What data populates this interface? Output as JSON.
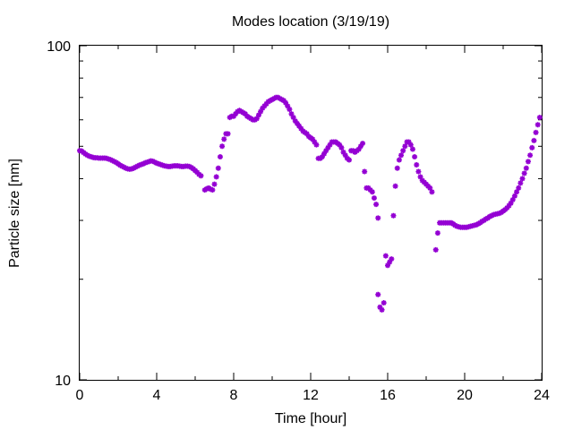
{
  "chart_data": {
    "type": "scatter",
    "title": "Modes location (3/19/19)",
    "xlabel": "Time [hour]",
    "ylabel": "Particle size [nm]",
    "xlim": [
      0,
      24
    ],
    "ylim": [
      10,
      100
    ],
    "yscale": "log",
    "grid": false,
    "legend": "none",
    "x_ticks": [
      0,
      4,
      8,
      12,
      16,
      20,
      24
    ],
    "x_tick_labels": [
      "0",
      "4",
      "8",
      "12",
      "16",
      "20",
      "24"
    ],
    "y_ticks": [
      10,
      100
    ],
    "y_tick_labels": [
      "10",
      "100"
    ],
    "marker_color": "#9400d3",
    "series": [
      {
        "points": [
          [
            0.0,
            48.5
          ],
          [
            0.1,
            48.4
          ],
          [
            0.2,
            47.9
          ],
          [
            0.3,
            47.4
          ],
          [
            0.4,
            47.0
          ],
          [
            0.5,
            46.7
          ],
          [
            0.6,
            46.5
          ],
          [
            0.7,
            46.3
          ],
          [
            0.8,
            46.2
          ],
          [
            0.9,
            46.2
          ],
          [
            1.0,
            46.1
          ],
          [
            1.1,
            46.1
          ],
          [
            1.2,
            46.1
          ],
          [
            1.3,
            46.1
          ],
          [
            1.4,
            46.0
          ],
          [
            1.5,
            45.8
          ],
          [
            1.6,
            45.6
          ],
          [
            1.7,
            45.3
          ],
          [
            1.8,
            45.0
          ],
          [
            1.9,
            44.7
          ],
          [
            2.0,
            44.3
          ],
          [
            2.1,
            43.9
          ],
          [
            2.2,
            43.6
          ],
          [
            2.3,
            43.3
          ],
          [
            2.4,
            43.0
          ],
          [
            2.5,
            42.8
          ],
          [
            2.6,
            42.7
          ],
          [
            2.7,
            42.8
          ],
          [
            2.8,
            43.0
          ],
          [
            2.9,
            43.3
          ],
          [
            3.0,
            43.6
          ],
          [
            3.1,
            43.9
          ],
          [
            3.2,
            44.1
          ],
          [
            3.3,
            44.3
          ],
          [
            3.4,
            44.6
          ],
          [
            3.5,
            44.8
          ],
          [
            3.6,
            45.0
          ],
          [
            3.7,
            45.2
          ],
          [
            3.8,
            45.1
          ],
          [
            3.9,
            44.8
          ],
          [
            4.0,
            44.5
          ],
          [
            4.1,
            44.3
          ],
          [
            4.2,
            44.1
          ],
          [
            4.3,
            43.9
          ],
          [
            4.4,
            43.7
          ],
          [
            4.5,
            43.6
          ],
          [
            4.6,
            43.5
          ],
          [
            4.7,
            43.5
          ],
          [
            4.8,
            43.6
          ],
          [
            4.9,
            43.7
          ],
          [
            5.0,
            43.7
          ],
          [
            5.1,
            43.7
          ],
          [
            5.2,
            43.6
          ],
          [
            5.3,
            43.5
          ],
          [
            5.4,
            43.5
          ],
          [
            5.5,
            43.6
          ],
          [
            5.6,
            43.6
          ],
          [
            5.7,
            43.5
          ],
          [
            5.8,
            43.2
          ],
          [
            5.9,
            42.8
          ],
          [
            6.0,
            42.3
          ],
          [
            6.1,
            41.8
          ],
          [
            6.2,
            41.2
          ],
          [
            6.3,
            40.8
          ],
          [
            6.5,
            37.0
          ],
          [
            6.6,
            37.3
          ],
          [
            6.7,
            37.5
          ],
          [
            6.8,
            37.2
          ],
          [
            6.9,
            37.0
          ],
          [
            7.0,
            38.5
          ],
          [
            7.1,
            40.5
          ],
          [
            7.2,
            43.0
          ],
          [
            7.3,
            46.5
          ],
          [
            7.4,
            50.0
          ],
          [
            7.5,
            52.5
          ],
          [
            7.6,
            54.5
          ],
          [
            7.7,
            54.5
          ],
          [
            7.8,
            61.0
          ],
          [
            7.9,
            61.5
          ],
          [
            8.0,
            61.5
          ],
          [
            8.1,
            62.5
          ],
          [
            8.2,
            63.5
          ],
          [
            8.3,
            64.0
          ],
          [
            8.4,
            63.5
          ],
          [
            8.5,
            63.0
          ],
          [
            8.6,
            62.5
          ],
          [
            8.7,
            61.5
          ],
          [
            8.8,
            61.0
          ],
          [
            8.9,
            60.5
          ],
          [
            9.0,
            60.0
          ],
          [
            9.1,
            60.0
          ],
          [
            9.2,
            60.5
          ],
          [
            9.3,
            62.0
          ],
          [
            9.4,
            63.5
          ],
          [
            9.5,
            65.0
          ],
          [
            9.6,
            66.0
          ],
          [
            9.7,
            67.0
          ],
          [
            9.8,
            68.0
          ],
          [
            9.9,
            68.5
          ],
          [
            10.0,
            69.0
          ],
          [
            10.1,
            69.5
          ],
          [
            10.2,
            70.0
          ],
          [
            10.3,
            70.0
          ],
          [
            10.4,
            69.5
          ],
          [
            10.5,
            69.0
          ],
          [
            10.6,
            68.5
          ],
          [
            10.7,
            67.5
          ],
          [
            10.8,
            66.0
          ],
          [
            10.9,
            64.5
          ],
          [
            11.0,
            62.5
          ],
          [
            11.1,
            61.0
          ],
          [
            11.2,
            59.5
          ],
          [
            11.3,
            58.5
          ],
          [
            11.4,
            57.5
          ],
          [
            11.5,
            56.5
          ],
          [
            11.6,
            55.5
          ],
          [
            11.7,
            55.0
          ],
          [
            11.8,
            54.5
          ],
          [
            11.9,
            53.5
          ],
          [
            12.0,
            53.0
          ],
          [
            12.1,
            52.5
          ],
          [
            12.2,
            51.5
          ],
          [
            12.3,
            50.5
          ],
          [
            12.4,
            46.0
          ],
          [
            12.5,
            46.0
          ],
          [
            12.6,
            46.5
          ],
          [
            12.7,
            47.5
          ],
          [
            12.8,
            48.5
          ],
          [
            12.9,
            49.5
          ],
          [
            13.0,
            50.5
          ],
          [
            13.1,
            51.5
          ],
          [
            13.2,
            51.5
          ],
          [
            13.3,
            51.5
          ],
          [
            13.4,
            51.0
          ],
          [
            13.5,
            50.5
          ],
          [
            13.6,
            49.5
          ],
          [
            13.7,
            48.0
          ],
          [
            13.8,
            47.0
          ],
          [
            13.9,
            46.0
          ],
          [
            14.0,
            45.5
          ],
          [
            14.1,
            48.5
          ],
          [
            14.2,
            48.5
          ],
          [
            14.3,
            48.0
          ],
          [
            14.4,
            48.5
          ],
          [
            14.5,
            49.0
          ],
          [
            14.6,
            50.0
          ],
          [
            14.7,
            51.0
          ],
          [
            14.8,
            42.0
          ],
          [
            14.9,
            37.5
          ],
          [
            15.0,
            37.5
          ],
          [
            15.1,
            37.0
          ],
          [
            15.2,
            36.5
          ],
          [
            15.3,
            35.0
          ],
          [
            15.4,
            33.5
          ],
          [
            15.5,
            30.5
          ],
          [
            15.5,
            18.0
          ],
          [
            15.6,
            16.5
          ],
          [
            15.7,
            16.2
          ],
          [
            15.8,
            17.0
          ],
          [
            15.9,
            23.5
          ],
          [
            16.0,
            22.0
          ],
          [
            16.1,
            22.5
          ],
          [
            16.2,
            23.0
          ],
          [
            16.3,
            31.0
          ],
          [
            16.4,
            38.0
          ],
          [
            16.5,
            43.0
          ],
          [
            16.6,
            45.5
          ],
          [
            16.7,
            47.0
          ],
          [
            16.8,
            48.5
          ],
          [
            16.9,
            50.0
          ],
          [
            17.0,
            51.5
          ],
          [
            17.1,
            51.5
          ],
          [
            17.2,
            50.5
          ],
          [
            17.3,
            49.0
          ],
          [
            17.4,
            46.5
          ],
          [
            17.5,
            44.0
          ],
          [
            17.6,
            42.0
          ],
          [
            17.7,
            40.5
          ],
          [
            17.8,
            39.5
          ],
          [
            17.9,
            39.0
          ],
          [
            18.0,
            38.5
          ],
          [
            18.1,
            38.0
          ],
          [
            18.2,
            37.5
          ],
          [
            18.3,
            36.5
          ],
          [
            18.5,
            24.5
          ],
          [
            18.6,
            27.5
          ],
          [
            18.7,
            29.5
          ],
          [
            18.8,
            29.5
          ],
          [
            18.9,
            29.5
          ],
          [
            19.0,
            29.5
          ],
          [
            19.1,
            29.5
          ],
          [
            19.2,
            29.5
          ],
          [
            19.3,
            29.5
          ],
          [
            19.4,
            29.3
          ],
          [
            19.5,
            29.0
          ],
          [
            19.6,
            28.8
          ],
          [
            19.7,
            28.7
          ],
          [
            19.8,
            28.6
          ],
          [
            19.9,
            28.6
          ],
          [
            20.0,
            28.6
          ],
          [
            20.1,
            28.6
          ],
          [
            20.2,
            28.7
          ],
          [
            20.3,
            28.8
          ],
          [
            20.4,
            28.9
          ],
          [
            20.5,
            29.0
          ],
          [
            20.6,
            29.1
          ],
          [
            20.7,
            29.3
          ],
          [
            20.8,
            29.5
          ],
          [
            20.9,
            29.8
          ],
          [
            21.0,
            30.0
          ],
          [
            21.1,
            30.3
          ],
          [
            21.2,
            30.5
          ],
          [
            21.3,
            30.8
          ],
          [
            21.4,
            31.0
          ],
          [
            21.5,
            31.2
          ],
          [
            21.6,
            31.3
          ],
          [
            21.7,
            31.4
          ],
          [
            21.8,
            31.5
          ],
          [
            21.9,
            31.7
          ],
          [
            22.0,
            32.0
          ],
          [
            22.1,
            32.3
          ],
          [
            22.2,
            32.7
          ],
          [
            22.3,
            33.2
          ],
          [
            22.4,
            33.8
          ],
          [
            22.5,
            34.6
          ],
          [
            22.6,
            35.5
          ],
          [
            22.7,
            36.5
          ],
          [
            22.8,
            37.5
          ],
          [
            22.9,
            38.8
          ],
          [
            23.0,
            40.0
          ],
          [
            23.1,
            41.5
          ],
          [
            23.2,
            43.0
          ],
          [
            23.3,
            45.0
          ],
          [
            23.4,
            47.0
          ],
          [
            23.5,
            49.5
          ],
          [
            23.6,
            52.0
          ],
          [
            23.7,
            55.0
          ],
          [
            23.8,
            58.0
          ],
          [
            23.9,
            61.0
          ]
        ]
      }
    ]
  }
}
